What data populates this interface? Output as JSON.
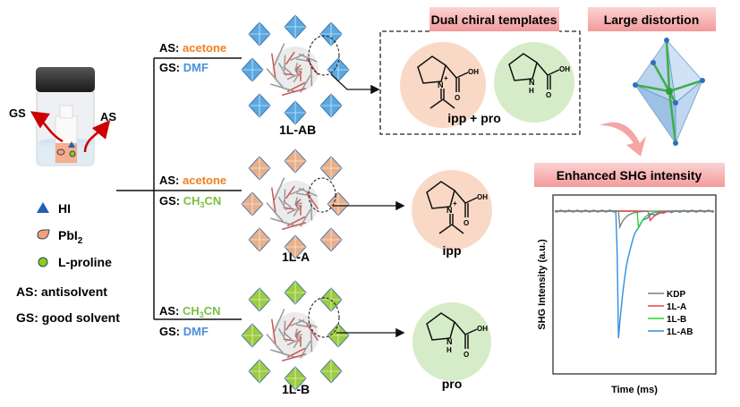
{
  "vial": {
    "gs_label": "GS",
    "as_label": "AS"
  },
  "legend": [
    {
      "icon": "triangle-icon",
      "label": "HI",
      "color": "#1f5fb8"
    },
    {
      "icon": "droplet-icon",
      "label": "PbI",
      "sub": "2",
      "color": "#f4a07a"
    },
    {
      "icon": "circle-icon",
      "label": "L-proline",
      "color": "#8ccc1c"
    }
  ],
  "abbrev": [
    "AS: antisolvent",
    "GS: good solvent"
  ],
  "branches": [
    {
      "as_prefix": "AS: ",
      "as": "acetone",
      "as_color": "#f08020",
      "gs_prefix": "GS: ",
      "gs": "DMF",
      "gs_color": "#4a90d9",
      "product": "1L-AB",
      "template": "ipp + pro"
    },
    {
      "as_prefix": "AS: ",
      "as": "acetone",
      "as_color": "#f08020",
      "gs_prefix": "GS: ",
      "gs": "CH",
      "gs_sub": "3",
      "gs_tail": "CN",
      "gs_color": "#7ac142",
      "product": "1L-A",
      "template": "ipp"
    },
    {
      "as_prefix": "AS: ",
      "as": "CH",
      "as_sub": "3",
      "as_tail": "CN",
      "as_color": "#7ac142",
      "gs_prefix": "GS: ",
      "gs": "DMF",
      "gs_color": "#4a90d9",
      "product": "1L-B",
      "template": "pro"
    }
  ],
  "molecule_labels": {
    "oh": "OH",
    "o": "O",
    "n": "N",
    "nh": "H",
    "plus": "+"
  },
  "headers": {
    "dual": "Dual chiral templates",
    "distortion": "Large distortion",
    "shg": "Enhanced SHG intensity"
  },
  "colors": {
    "ipp_bg": "#f9d9c6",
    "pro_bg": "#d6ecc9",
    "header_bg": "#f7b8b8"
  },
  "chart_data": {
    "type": "line",
    "xlabel": "Time (ms)",
    "ylabel": "SHG Intensity (a.u.)",
    "legend_placement": "center-right",
    "grid": false,
    "series": [
      {
        "name": "KDP",
        "color": "#808080",
        "dip_time": 0.4,
        "dip_depth": 0.13
      },
      {
        "name": "1L-A",
        "color": "#f04040",
        "dip_time": 0.59,
        "dip_depth": 0.08
      },
      {
        "name": "1L-B",
        "color": "#30d030",
        "dip_time": 0.52,
        "dip_depth": 0.13
      },
      {
        "name": "1L-AB",
        "color": "#2f8fe0",
        "dip_time": 0.39,
        "dip_depth": 1.0
      }
    ]
  }
}
